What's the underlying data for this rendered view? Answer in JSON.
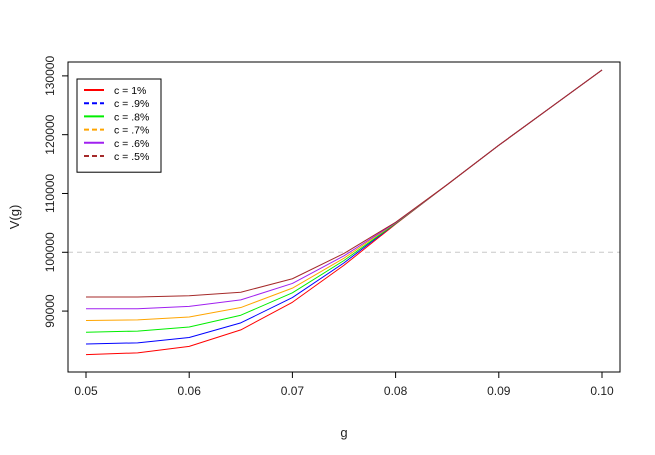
{
  "chart_data": {
    "type": "line",
    "title": "",
    "xlabel": "g",
    "ylabel": "V(g)",
    "xlim": [
      0.05,
      0.1
    ],
    "ylim": [
      81000,
      131000
    ],
    "x_ticks": [
      0.05,
      0.06,
      0.07,
      0.08,
      0.09,
      0.1
    ],
    "x_tick_labels": [
      "0.05",
      "0.06",
      "0.07",
      "0.08",
      "0.09",
      "0.10"
    ],
    "y_ticks": [
      90000,
      100000,
      110000,
      120000,
      130000
    ],
    "y_tick_labels": [
      "90000",
      "100000",
      "110000",
      "120000",
      "130000"
    ],
    "reference_line": {
      "y": 100000,
      "color": "#c8c8c8",
      "style": "dashed"
    },
    "legend_position": "top-left",
    "x": [
      0.05,
      0.055,
      0.06,
      0.065,
      0.07,
      0.075,
      0.08,
      0.085,
      0.09,
      0.095,
      0.1
    ],
    "series": [
      {
        "name": "c = 1%",
        "color": "#ff0000",
        "legend_dash": "solid",
        "values": [
          82600,
          82900,
          84000,
          86800,
          91500,
          97800,
          104800,
          111500,
          118200,
          124600,
          131000
        ]
      },
      {
        "name": "c = .9%",
        "color": "#0000ff",
        "legend_dash": "dashed",
        "values": [
          84400,
          84600,
          85500,
          88000,
          92300,
          98200,
          104900,
          111500,
          118200,
          124600,
          131000
        ]
      },
      {
        "name": "c = .8%",
        "color": "#00ee00",
        "legend_dash": "solid",
        "values": [
          86400,
          86600,
          87300,
          89300,
          93100,
          98600,
          104900,
          111500,
          118200,
          124600,
          131000
        ]
      },
      {
        "name": "c = .7%",
        "color": "#ffa500",
        "legend_dash": "dashed",
        "values": [
          88400,
          88500,
          89000,
          90600,
          93900,
          99000,
          105000,
          111500,
          118200,
          124600,
          131000
        ]
      },
      {
        "name": "c = .6%",
        "color": "#a020f0",
        "legend_dash": "solid",
        "values": [
          90400,
          90400,
          90800,
          91900,
          94700,
          99400,
          105000,
          111500,
          118200,
          124600,
          131000
        ]
      },
      {
        "name": "c = .5%",
        "color": "#a52a2a",
        "legend_dash": "dashed",
        "values": [
          92400,
          92400,
          92600,
          93200,
          95500,
          99800,
          105100,
          111500,
          118200,
          124600,
          131000
        ]
      }
    ]
  }
}
